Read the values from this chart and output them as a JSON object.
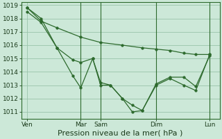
{
  "bg_color": "#cce8d8",
  "plot_bg_color": "#cce8d8",
  "grid_color": "#99c4aa",
  "line_color": "#2d6a2d",
  "xlabel": "Pression niveau de la mer( hPa )",
  "xlabel_fontsize": 8,
  "tick_fontsize": 6.5,
  "ylim": [
    1010.5,
    1019.2
  ],
  "yticks": [
    1011,
    1012,
    1013,
    1014,
    1015,
    1016,
    1017,
    1018,
    1019
  ],
  "xlim": [
    0,
    100
  ],
  "xtick_positions": [
    3,
    30,
    40,
    68,
    95
  ],
  "xtick_labels": [
    "Ven",
    "Mar",
    "Sam",
    "Dim",
    "Lun"
  ],
  "vline_positions": [
    30,
    40,
    68,
    95
  ],
  "series1_x": [
    3,
    10,
    18,
    30,
    40,
    51,
    61,
    68,
    75,
    82,
    88,
    95
  ],
  "series1_y": [
    1018.8,
    1017.8,
    1017.3,
    1016.6,
    1016.2,
    1016.0,
    1015.8,
    1015.7,
    1015.6,
    1015.4,
    1015.3,
    1015.3
  ],
  "series2_x": [
    3,
    10,
    18,
    26,
    30,
    36,
    40,
    45,
    51,
    56,
    61,
    68,
    75,
    82,
    88,
    95
  ],
  "series2_y": [
    1018.8,
    1018.0,
    1015.8,
    1014.9,
    1014.7,
    1015.0,
    1013.2,
    1013.0,
    1012.0,
    1011.5,
    1011.1,
    1013.0,
    1013.5,
    1013.0,
    1012.6,
    1015.3
  ],
  "series3_x": [
    3,
    10,
    18,
    26,
    30,
    36,
    40,
    45,
    51,
    56,
    61,
    68,
    75,
    82,
    88,
    95
  ],
  "series3_y": [
    1018.5,
    1017.7,
    1015.8,
    1013.7,
    1012.8,
    1015.0,
    1013.0,
    1013.0,
    1012.0,
    1011.0,
    1011.1,
    1013.1,
    1013.6,
    1013.6,
    1012.9,
    1015.2
  ]
}
